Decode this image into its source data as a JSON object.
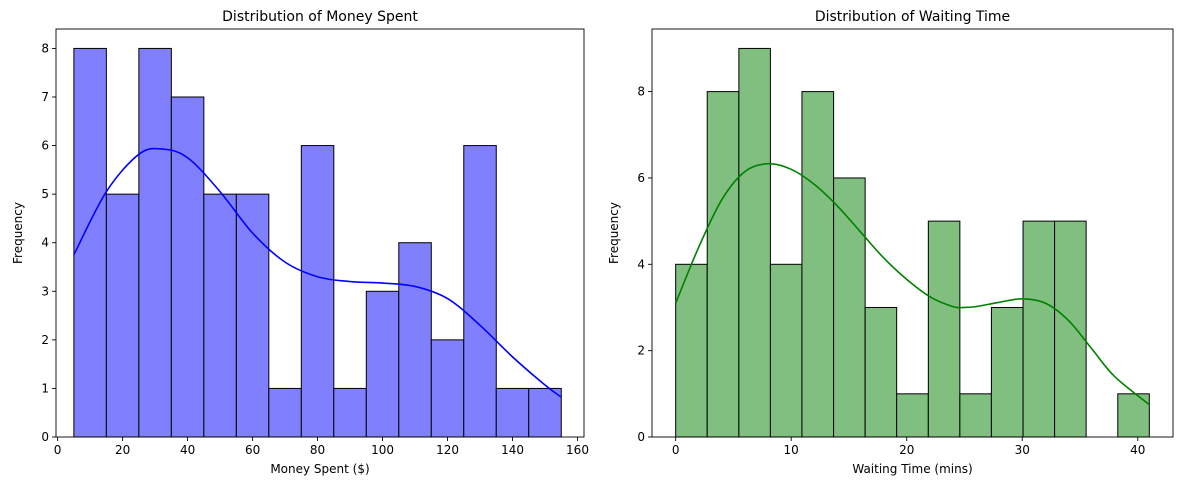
{
  "chart_data": [
    {
      "type": "bar",
      "title": "Distribution of Money Spent",
      "xlabel": "Money Spent ($)",
      "ylabel": "Frequency",
      "color": "#0000ff",
      "bar_fill": "#8080ff",
      "edge_color": "#000000",
      "bin_edges": [
        5,
        15,
        25,
        35,
        45,
        55,
        65,
        75,
        85,
        95,
        105,
        115,
        125,
        135,
        145,
        155
      ],
      "values": [
        8,
        5,
        8,
        7,
        5,
        5,
        1,
        6,
        1,
        3,
        4,
        2,
        6,
        1,
        1
      ],
      "kde": {
        "x": [
          5,
          15,
          25,
          32,
          40,
          50,
          60,
          70,
          80,
          90,
          100,
          110,
          120,
          130,
          140,
          150,
          155
        ],
        "y": [
          3.75,
          5.05,
          5.82,
          5.93,
          5.75,
          5.05,
          4.2,
          3.6,
          3.3,
          3.2,
          3.17,
          3.1,
          2.85,
          2.3,
          1.65,
          1.07,
          0.82
        ]
      },
      "xlim": [
        -0.5,
        162
      ],
      "ylim": [
        0,
        8.4
      ],
      "xticks": [
        0,
        20,
        40,
        60,
        80,
        100,
        120,
        140,
        160
      ],
      "yticks": [
        0,
        1,
        2,
        3,
        4,
        5,
        6,
        7,
        8
      ],
      "grid": false
    },
    {
      "type": "bar",
      "title": "Distribution of Waiting Time",
      "xlabel": "Waiting Time (mins)",
      "ylabel": "Frequency",
      "color": "#008000",
      "bar_fill": "#80bf80",
      "edge_color": "#000000",
      "bin_edges": [
        0,
        2.73,
        5.47,
        8.2,
        10.93,
        13.67,
        16.4,
        19.13,
        21.87,
        24.6,
        27.33,
        30.07,
        32.8,
        35.53,
        38.27,
        41
      ],
      "values": [
        4,
        8,
        9,
        4,
        8,
        6,
        3,
        1,
        5,
        1,
        3,
        5,
        5,
        0,
        1
      ],
      "kde": {
        "x": [
          0,
          2,
          4,
          6,
          8,
          10,
          12,
          14,
          16,
          18,
          20,
          22,
          24,
          25,
          26,
          28,
          30,
          32,
          34,
          36,
          38,
          41
        ],
        "y": [
          3.1,
          4.4,
          5.5,
          6.15,
          6.33,
          6.2,
          5.85,
          5.35,
          4.75,
          4.15,
          3.65,
          3.25,
          3.02,
          3.0,
          3.02,
          3.12,
          3.2,
          3.1,
          2.7,
          2.05,
          1.4,
          0.75
        ]
      },
      "xlim": [
        -2.05,
        43.05
      ],
      "ylim": [
        0,
        9.45
      ],
      "xticks": [
        0,
        10,
        20,
        30,
        40
      ],
      "yticks": [
        0,
        2,
        4,
        6,
        8
      ],
      "grid": false
    }
  ]
}
